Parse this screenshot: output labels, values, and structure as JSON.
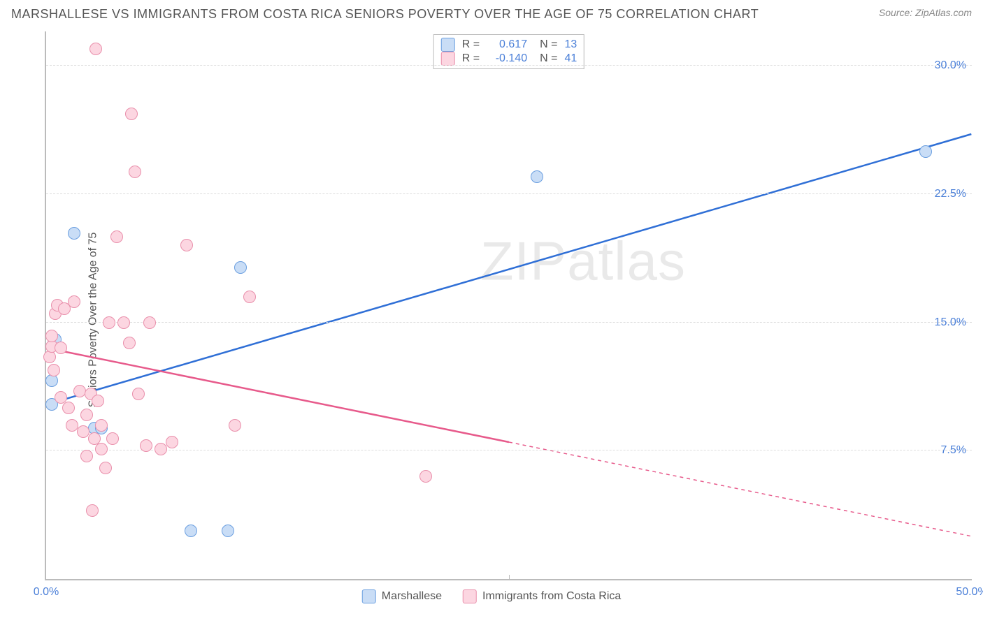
{
  "title": "MARSHALLESE VS IMMIGRANTS FROM COSTA RICA SENIORS POVERTY OVER THE AGE OF 75 CORRELATION CHART",
  "source": "Source: ZipAtlas.com",
  "ylabel": "Seniors Poverty Over the Age of 75",
  "watermark_a": "ZIP",
  "watermark_b": "atlas",
  "chart": {
    "type": "scatter",
    "xlim": [
      0,
      50
    ],
    "ylim": [
      0,
      32
    ],
    "x_ticks": [
      0,
      50
    ],
    "x_tick_labels": [
      "0.0%",
      "50.0%"
    ],
    "x_minor_tick": 25,
    "y_gridlines": [
      7.5,
      15.0,
      22.5,
      30.0
    ],
    "y_tick_labels": [
      "7.5%",
      "15.0%",
      "22.5%",
      "30.0%"
    ],
    "background_color": "#ffffff",
    "grid_color": "#dddddd",
    "axis_color": "#bbbbbb",
    "tick_label_color": "#4a7fd8",
    "series": [
      {
        "name": "Marshallese",
        "color_fill": "#c9ddf6",
        "color_stroke": "#6b9fe0",
        "line_color": "#2f6fd6",
        "R": "0.617",
        "N": "13",
        "trend": {
          "x1": 0,
          "y1": 10.2,
          "x2": 50,
          "y2": 26.0,
          "dashed_from_x": null
        },
        "points": [
          {
            "x": 0.3,
            "y": 10.2
          },
          {
            "x": 0.3,
            "y": 11.6
          },
          {
            "x": 0.4,
            "y": 13.8
          },
          {
            "x": 0.5,
            "y": 14.0
          },
          {
            "x": 1.5,
            "y": 20.2
          },
          {
            "x": 2.6,
            "y": 8.8
          },
          {
            "x": 3.0,
            "y": 8.8
          },
          {
            "x": 7.8,
            "y": 2.8
          },
          {
            "x": 9.8,
            "y": 2.8
          },
          {
            "x": 10.5,
            "y": 18.2
          },
          {
            "x": 26.5,
            "y": 23.5
          },
          {
            "x": 47.5,
            "y": 25.0
          }
        ]
      },
      {
        "name": "Immigrants from Costa Rica",
        "color_fill": "#fcd6e1",
        "color_stroke": "#e98fab",
        "line_color": "#e75a8b",
        "R": "-0.140",
        "N": "41",
        "trend": {
          "x1": 0,
          "y1": 13.5,
          "x2": 50,
          "y2": 2.5,
          "dashed_from_x": 25
        },
        "points": [
          {
            "x": 0.2,
            "y": 13.0
          },
          {
            "x": 0.3,
            "y": 13.6
          },
          {
            "x": 0.3,
            "y": 14.2
          },
          {
            "x": 0.4,
            "y": 12.2
          },
          {
            "x": 0.5,
            "y": 15.5
          },
          {
            "x": 0.6,
            "y": 16.0
          },
          {
            "x": 0.8,
            "y": 13.5
          },
          {
            "x": 0.8,
            "y": 10.6
          },
          {
            "x": 1.0,
            "y": 15.8
          },
          {
            "x": 1.2,
            "y": 10.0
          },
          {
            "x": 1.4,
            "y": 9.0
          },
          {
            "x": 1.5,
            "y": 16.2
          },
          {
            "x": 1.8,
            "y": 11.0
          },
          {
            "x": 2.0,
            "y": 8.6
          },
          {
            "x": 2.2,
            "y": 9.6
          },
          {
            "x": 2.2,
            "y": 7.2
          },
          {
            "x": 2.4,
            "y": 10.8
          },
          {
            "x": 2.5,
            "y": 4.0
          },
          {
            "x": 2.6,
            "y": 8.2
          },
          {
            "x": 2.7,
            "y": 31.0
          },
          {
            "x": 2.8,
            "y": 10.4
          },
          {
            "x": 3.0,
            "y": 7.6
          },
          {
            "x": 3.0,
            "y": 9.0
          },
          {
            "x": 3.2,
            "y": 6.5
          },
          {
            "x": 3.4,
            "y": 15.0
          },
          {
            "x": 3.6,
            "y": 8.2
          },
          {
            "x": 3.8,
            "y": 20.0
          },
          {
            "x": 4.2,
            "y": 15.0
          },
          {
            "x": 4.5,
            "y": 13.8
          },
          {
            "x": 4.6,
            "y": 27.2
          },
          {
            "x": 4.8,
            "y": 23.8
          },
          {
            "x": 5.0,
            "y": 10.8
          },
          {
            "x": 5.4,
            "y": 7.8
          },
          {
            "x": 5.6,
            "y": 15.0
          },
          {
            "x": 6.2,
            "y": 7.6
          },
          {
            "x": 6.8,
            "y": 8.0
          },
          {
            "x": 7.6,
            "y": 19.5
          },
          {
            "x": 10.2,
            "y": 9.0
          },
          {
            "x": 11.0,
            "y": 16.5
          },
          {
            "x": 20.5,
            "y": 6.0
          }
        ]
      }
    ]
  },
  "legend": {
    "items": [
      {
        "label": "Marshallese"
      },
      {
        "label": "Immigrants from Costa Rica"
      }
    ]
  }
}
